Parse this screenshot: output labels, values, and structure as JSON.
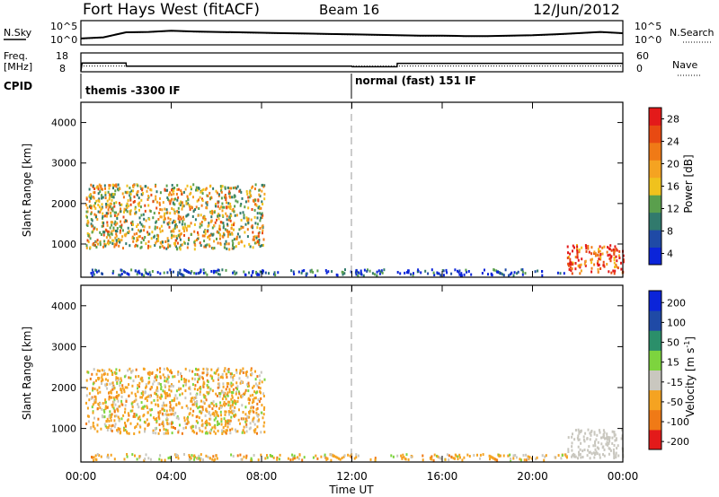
{
  "header": {
    "station": "Fort Hays West (fitACF)",
    "beam": "Beam 16",
    "date": "12/Jun/2012"
  },
  "strip_labels": {
    "nsky": "N.Sky",
    "nsky_ticks": [
      "10^5",
      "10^0"
    ],
    "nsearch": "N.Search",
    "nsearch_ticks": [
      "10^5",
      "10^0"
    ],
    "freq_label": "Freq.",
    "freq_unit": "[MHz]",
    "freq_ticks": [
      "18",
      "8"
    ],
    "nave": "Nave",
    "nave_ticks": [
      "60",
      "0"
    ],
    "cpid": "CPID",
    "cpid_segments": [
      {
        "label": "themis -3300 IF",
        "start_hour": 0,
        "end_hour": 12
      },
      {
        "label": "normal (fast) 151 IF",
        "start_hour": 12,
        "end_hour": 24
      }
    ]
  },
  "chart_data": [
    {
      "type": "line",
      "title": "N.Sky / N.Search",
      "x": [
        0,
        1,
        2,
        3,
        4,
        5,
        6,
        7,
        8,
        9,
        10,
        11,
        12,
        13,
        14,
        15,
        16,
        17,
        18,
        19,
        20,
        21,
        22,
        23,
        24
      ],
      "series": [
        {
          "name": "N.Sky",
          "values": [
            1.1,
            1.4,
            2.6,
            2.7,
            3.0,
            2.8,
            2.7,
            2.6,
            2.5,
            2.4,
            2.3,
            2.2,
            2.1,
            2.0,
            1.9,
            1.8,
            1.8,
            1.7,
            1.7,
            1.8,
            1.9,
            2.1,
            2.4,
            2.7,
            2.4
          ]
        },
        {
          "name": "N.Search",
          "values": [
            1.0,
            1.3,
            2.5,
            2.6,
            2.9,
            2.7,
            2.6,
            2.5,
            2.4,
            2.3,
            2.2,
            2.1,
            2.0,
            1.9,
            1.8,
            1.7,
            1.7,
            1.6,
            1.6,
            1.7,
            1.8,
            2.0,
            2.3,
            2.6,
            2.3
          ]
        }
      ],
      "xlim": [
        0,
        24
      ]
    },
    {
      "type": "line",
      "title": "Freq. / Nave",
      "series": [
        {
          "name": "Freq.",
          "x": [
            0,
            0.05,
            2,
            2.01,
            12,
            12.01,
            14,
            14.01,
            24
          ],
          "values": [
            8,
            12.6,
            12.6,
            10.8,
            10.8,
            10.4,
            10.4,
            12.4,
            12.4
          ]
        },
        {
          "name": "Nave",
          "x": [
            0,
            24
          ],
          "values": [
            17,
            17
          ]
        }
      ],
      "xlim": [
        0,
        24
      ]
    },
    {
      "type": "heatmap",
      "title": "Power [dB]",
      "xlabel": "",
      "ylabel": "Slant Range [km]",
      "colorbar_label": "Power [dB]",
      "colorbar_ticks": [
        4,
        8,
        12,
        16,
        20,
        24,
        28
      ],
      "colorscale": [
        "#0b24d9",
        "#1f4aa6",
        "#317a6d",
        "#5a9f4d",
        "#f0c21d",
        "#f5a321",
        "#f07a16",
        "#e84a12",
        "#e31a1a"
      ],
      "x_ticks": [
        "00:00",
        "04:00",
        "08:00",
        "12:00",
        "16:00",
        "20:00",
        "00:00"
      ],
      "y_ticks": [
        1000,
        2000,
        3000,
        4000
      ],
      "xlim": [
        0,
        24
      ],
      "ylim": [
        180,
        4500
      ],
      "regions": [
        {
          "from_hour": 0.2,
          "to_hour": 8.1,
          "slant_range_min": 900,
          "slant_range_max": 2500,
          "power_db": 18
        },
        {
          "from_hour": 21.5,
          "to_hour": 24,
          "slant_range_min": 300,
          "slant_range_max": 1000,
          "power_db": 26
        },
        {
          "from_hour": 0.4,
          "to_hour": 21.5,
          "slant_range_min": 250,
          "slant_range_max": 400,
          "power_db": 6
        }
      ]
    },
    {
      "type": "heatmap",
      "title": "Velocity [m s-1]",
      "xlabel": "Time UT",
      "ylabel": "Slant Range [km]",
      "colorbar_label": "Velocity [m s",
      "colorbar_label_sup": "-1",
      "colorbar_label_end": "]",
      "colorbar_ticks": [
        200,
        100,
        50,
        15,
        -15,
        -50,
        -100,
        -200
      ],
      "colorscale": [
        "#e31a1a",
        "#f07a16",
        "#f5a321",
        "#c9c7bf",
        "#7dd43e",
        "#2b8f6a",
        "#1f4aa6",
        "#0b24d9"
      ],
      "x_ticks": [
        "00:00",
        "04:00",
        "08:00",
        "12:00",
        "16:00",
        "20:00",
        "00:00"
      ],
      "y_ticks": [
        1000,
        2000,
        3000,
        4000
      ],
      "xlim": [
        0,
        24
      ],
      "ylim": [
        180,
        4500
      ],
      "regions": [
        {
          "from_hour": 0.2,
          "to_hour": 8.1,
          "slant_range_min": 900,
          "slant_range_max": 2500,
          "velocity_ms": -30
        },
        {
          "from_hour": 21.5,
          "to_hour": 24,
          "slant_range_min": 300,
          "slant_range_max": 1000,
          "velocity_ms": 0
        },
        {
          "from_hour": 0.4,
          "to_hour": 21.5,
          "slant_range_min": 250,
          "slant_range_max": 400,
          "velocity_ms": -40
        }
      ]
    }
  ],
  "xaxis_title": "Time UT"
}
